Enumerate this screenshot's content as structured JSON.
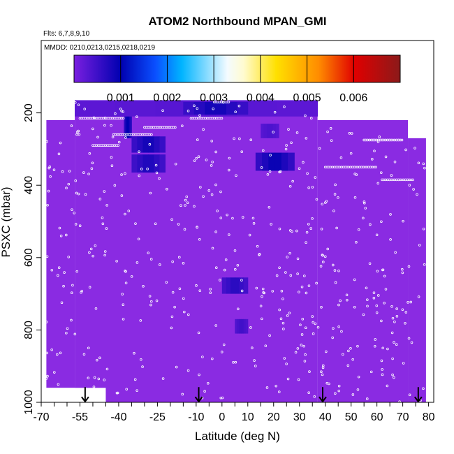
{
  "chart_data": {
    "type": "heatmap",
    "title": "ATOM2 Northbound MPAN_GMI",
    "flights_note": "Flts: 6,7,8,9,10",
    "dates_note": "MMDD: 0210,0213,0215,0218,0219",
    "xlabel": "Latitude (deg N)",
    "ylabel": "PSXC (mbar)",
    "xlim": [
      -70,
      82
    ],
    "ylim": [
      1000,
      0
    ],
    "x_ticks": [
      -70,
      -55,
      -40,
      -25,
      -10,
      0,
      10,
      20,
      30,
      40,
      50,
      60,
      70,
      80
    ],
    "x_tick_labels": [
      "-70",
      "-55",
      "-40",
      "-25",
      "-10",
      "0",
      "10",
      "20",
      "30",
      "40",
      "50",
      "60",
      "70",
      "80"
    ],
    "y_ticks": [
      200,
      400,
      600,
      800,
      1000
    ],
    "y_tick_labels": [
      "200",
      "400",
      "600",
      "800",
      "1000"
    ],
    "colorbar": {
      "range": [
        0,
        0.007
      ],
      "ticks": [
        0.001,
        0.002,
        0.003,
        0.004,
        0.005,
        0.006
      ],
      "tick_labels": [
        "0.001",
        "0.002",
        "0.003",
        "0.004",
        "0.005",
        "0.006"
      ],
      "colors": [
        "#8a2be2",
        "#0000cd",
        "#00bfff",
        "#ffffff",
        "#ffd700",
        "#ff8c00",
        "#cc0000",
        "#8b1a1a"
      ]
    },
    "background_value": 0.0002,
    "background_color": "#8a2be2",
    "regions": [
      {
        "lat_min": -57,
        "lat_max": 37,
        "p_min": 165,
        "p_max": 210,
        "value": 0.0003
      },
      {
        "lat_min": -15,
        "lat_max": 10,
        "p_min": 170,
        "p_max": 205,
        "value": 0.0009
      },
      {
        "lat_min": -38,
        "lat_max": -35,
        "p_min": 210,
        "p_max": 270,
        "value": 0.0011
      },
      {
        "lat_min": -35,
        "lat_max": -22,
        "p_min": 265,
        "p_max": 310,
        "value": 0.0009
      },
      {
        "lat_min": -35,
        "lat_max": -22,
        "p_min": 315,
        "p_max": 365,
        "value": 0.0008
      },
      {
        "lat_min": 15,
        "lat_max": 22,
        "p_min": 230,
        "p_max": 270,
        "value": 0.0004
      },
      {
        "lat_min": 13,
        "lat_max": 28,
        "p_min": 310,
        "p_max": 360,
        "value": 0.001
      },
      {
        "lat_min": 0,
        "lat_max": 10,
        "p_min": 655,
        "p_max": 700,
        "value": 0.0007
      },
      {
        "lat_min": 5,
        "lat_max": 10,
        "p_min": 770,
        "p_max": 810,
        "value": 0.0005
      }
    ],
    "data_coverage": [
      {
        "lat_min": -68,
        "lat_max": -57,
        "p_min": 220,
        "p_max": 960
      },
      {
        "lat_min": -57,
        "lat_max": 37,
        "p_min": 165,
        "p_max": 1000
      },
      {
        "lat_min": 37,
        "lat_max": 72,
        "p_min": 220,
        "p_max": 1000
      },
      {
        "lat_min": 72,
        "lat_max": 79,
        "p_min": 270,
        "p_max": 1000
      },
      {
        "lat_min": -68,
        "lat_max": -45,
        "p_min": 960,
        "p_max": 1000
      }
    ],
    "profile_arrows_lat": [
      -53,
      -9,
      39,
      76
    ]
  }
}
